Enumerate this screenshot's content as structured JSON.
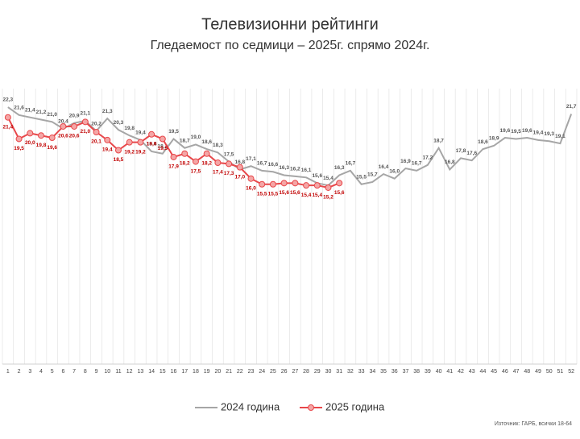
{
  "chart_data": {
    "type": "line",
    "title": "Телевизионни рейтинги",
    "subtitle": "Гледаемост по седмици – 2025г. спрямо 2024г.",
    "source": "Източник: ГАРБ, всички 18-64",
    "categories": [
      "1",
      "2",
      "3",
      "4",
      "5",
      "6",
      "7",
      "8",
      "9",
      "10",
      "11",
      "12",
      "13",
      "14",
      "15",
      "16",
      "17",
      "18",
      "19",
      "20",
      "21",
      "22",
      "23",
      "24",
      "25",
      "26",
      "27",
      "28",
      "29",
      "30",
      "31",
      "32",
      "33",
      "34",
      "35",
      "36",
      "37",
      "38",
      "39",
      "40",
      "41",
      "42",
      "43",
      "44",
      "45",
      "46",
      "47",
      "48",
      "49",
      "50",
      "51",
      "52"
    ],
    "ylim": [
      0,
      25
    ],
    "grid": true,
    "legend": "bottom",
    "series": [
      {
        "name": "2024 година",
        "color": "#a6a6a6",
        "values": [
          22.3,
          21.6,
          21.4,
          21.2,
          21.0,
          20.4,
          20.9,
          21.1,
          20.2,
          21.3,
          20.3,
          19.8,
          19.4,
          18.4,
          18.2,
          19.5,
          18.7,
          19.0,
          18.6,
          18.3,
          17.5,
          16.8,
          17.1,
          16.7,
          16.6,
          16.3,
          16.2,
          16.1,
          15.6,
          15.4,
          16.3,
          16.7,
          15.5,
          15.7,
          16.4,
          16.0,
          16.9,
          16.7,
          17.2,
          18.7,
          16.8,
          17.8,
          17.6,
          18.6,
          18.9,
          19.6,
          19.5,
          19.6,
          19.4,
          19.3,
          19.1,
          21.7
        ],
        "value_labels": [
          "22,3",
          "21,6",
          "21,4",
          "21,2",
          "21,0",
          "20,4",
          "20,9",
          "21,1",
          "20,2",
          "21,3",
          "20,3",
          "19,8",
          "19,4",
          "18,4",
          "18,2",
          "19,5",
          "18,7",
          "19,0",
          "18,6",
          "18,3",
          "17,5",
          "16,8",
          "17,1",
          "16,7",
          "16,6",
          "16,3",
          "16,2",
          "16,1",
          "15,6",
          "15,4",
          "16,3",
          "16,7",
          "15,5",
          "15,7",
          "16,4",
          "16,0",
          "16,9",
          "16,7",
          "17,2",
          "18,7",
          "16,8",
          "17,8",
          "17,6",
          "18,6",
          "18,9",
          "19,6",
          "19,5",
          "19,6",
          "19,4",
          "19,3",
          "19,1",
          "21,7"
        ]
      },
      {
        "name": "2025 година",
        "color": "#e8474a",
        "values": [
          21.4,
          19.5,
          20.0,
          19.8,
          19.6,
          20.6,
          20.6,
          21.0,
          20.1,
          19.4,
          18.5,
          19.2,
          19.2,
          19.9,
          19.5,
          17.9,
          18.2,
          17.5,
          18.2,
          17.4,
          17.3,
          17.0,
          16.0,
          15.5,
          15.5,
          15.6,
          15.6,
          15.4,
          15.4,
          15.2,
          15.6,
          null,
          null,
          null,
          null,
          null,
          null,
          null,
          null,
          null,
          null,
          null,
          null,
          null,
          null,
          null,
          null,
          null,
          null,
          null,
          null,
          null
        ],
        "value_labels": [
          "21,4",
          "19,5",
          "20,0",
          "19,8",
          "19,6",
          "20,6",
          "20,6",
          "21,0",
          "20,1",
          "19,4",
          "18,5",
          "19,2",
          "19,2",
          "19,9",
          "19,5",
          "17,9",
          "18,2",
          "17,5",
          "18,2",
          "17,4",
          "17,3",
          "17,0",
          "16,0",
          "15,5",
          "15,5",
          "15,6",
          "15,6",
          "15,4",
          "15,4",
          "15,2",
          "15,6",
          null,
          null,
          null,
          null,
          null,
          null,
          null,
          null,
          null,
          null,
          null,
          null,
          null,
          null,
          null,
          null,
          null,
          null,
          null,
          null,
          null
        ]
      }
    ]
  }
}
